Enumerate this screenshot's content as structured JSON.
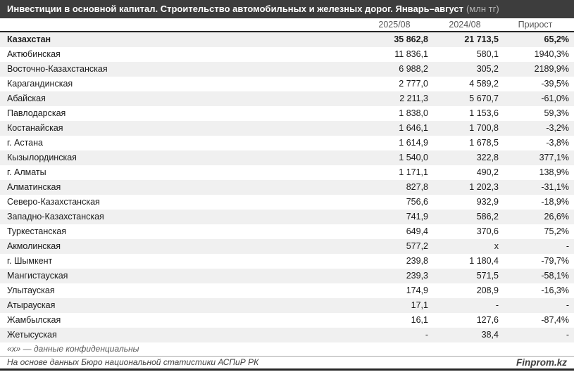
{
  "title": {
    "text": "Инвестиции в основной капитал. Строительство автомобильных и железных дорог. Январь–август",
    "unit": "(млн тг)"
  },
  "table": {
    "columns": [
      "2025/08",
      "2024/08",
      "Прирост"
    ],
    "rows": [
      {
        "region": "Казахстан",
        "v2025": "35 862,8",
        "v2024": "21 713,5",
        "growth": "65,2%",
        "bold": true
      },
      {
        "region": "Актюбинская",
        "v2025": "11 836,1",
        "v2024": "580,1",
        "growth": "1940,3%",
        "bold": false
      },
      {
        "region": "Восточно-Казахстанская",
        "v2025": "6 988,2",
        "v2024": "305,2",
        "growth": "2189,9%",
        "bold": false
      },
      {
        "region": "Карагандинская",
        "v2025": "2 777,0",
        "v2024": "4 589,2",
        "growth": "-39,5%",
        "bold": false
      },
      {
        "region": "Абайская",
        "v2025": "2 211,3",
        "v2024": "5 670,7",
        "growth": "-61,0%",
        "bold": false
      },
      {
        "region": "Павлодарская",
        "v2025": "1 838,0",
        "v2024": "1 153,6",
        "growth": "59,3%",
        "bold": false
      },
      {
        "region": "Костанайская",
        "v2025": "1 646,1",
        "v2024": "1 700,8",
        "growth": "-3,2%",
        "bold": false
      },
      {
        "region": "г. Астана",
        "v2025": "1 614,9",
        "v2024": "1 678,5",
        "growth": "-3,8%",
        "bold": false
      },
      {
        "region": "Кызылординская",
        "v2025": "1 540,0",
        "v2024": "322,8",
        "growth": "377,1%",
        "bold": false
      },
      {
        "region": "г. Алматы",
        "v2025": "1 171,1",
        "v2024": "490,2",
        "growth": "138,9%",
        "bold": false
      },
      {
        "region": "Алматинская",
        "v2025": "827,8",
        "v2024": "1 202,3",
        "growth": "-31,1%",
        "bold": false
      },
      {
        "region": "Северо-Казахстанская",
        "v2025": "756,6",
        "v2024": "932,9",
        "growth": "-18,9%",
        "bold": false
      },
      {
        "region": "Западно-Казахстанская",
        "v2025": "741,9",
        "v2024": "586,2",
        "growth": "26,6%",
        "bold": false
      },
      {
        "region": "Туркестанская",
        "v2025": "649,4",
        "v2024": "370,6",
        "growth": "75,2%",
        "bold": false
      },
      {
        "region": "Акмолинская",
        "v2025": "577,2",
        "v2024": "х",
        "growth": "-",
        "bold": false
      },
      {
        "region": "г. Шымкент",
        "v2025": "239,8",
        "v2024": "1 180,4",
        "growth": "-79,7%",
        "bold": false
      },
      {
        "region": "Мангистауская",
        "v2025": "239,3",
        "v2024": "571,5",
        "growth": "-58,1%",
        "bold": false
      },
      {
        "region": "Улытауская",
        "v2025": "174,9",
        "v2024": "208,9",
        "growth": "-16,3%",
        "bold": false
      },
      {
        "region": "Атырауская",
        "v2025": "17,1",
        "v2024": "-",
        "growth": "-",
        "bold": false
      },
      {
        "region": "Жамбылская",
        "v2025": "16,1",
        "v2024": "127,6",
        "growth": "-87,4%",
        "bold": false
      },
      {
        "region": "Жетысуская",
        "v2025": "-",
        "v2024": "38,4",
        "growth": "-",
        "bold": false
      }
    ]
  },
  "footnote": "«х» — данные конфиденциальны",
  "source": "На основе данных Бюро национальной статистики АСПиР РК",
  "brand": "Finprom.kz",
  "colors": {
    "titlebar_bg": "#3d3d3d",
    "title_text": "#ffffff",
    "unit_text": "#b5b5b5",
    "stripe": "#f0f0f0",
    "border_dark": "#262626",
    "row_text": "#1a1a1a",
    "header_text": "#595959"
  },
  "chart_data": {
    "type": "table",
    "title": "Инвестиции в основной капитал. Строительство автомобильных и железных дорог. Январь–август (млн тг)",
    "categories": [
      "Казахстан",
      "Актюбинская",
      "Восточно-Казахстанская",
      "Карагандинская",
      "Абайская",
      "Павлодарская",
      "Костанайская",
      "г. Астана",
      "Кызылординская",
      "г. Алматы",
      "Алматинская",
      "Северо-Казахстанская",
      "Западно-Казахстанская",
      "Туркестанская",
      "Акмолинская",
      "г. Шымкент",
      "Мангистауская",
      "Улытауская",
      "Атырауская",
      "Жамбылская",
      "Жетысуская"
    ],
    "series": [
      {
        "name": "2025/08",
        "values": [
          35862.8,
          11836.1,
          6988.2,
          2777.0,
          2211.3,
          1838.0,
          1646.1,
          1614.9,
          1540.0,
          1171.1,
          827.8,
          756.6,
          741.9,
          649.4,
          577.2,
          239.8,
          239.3,
          174.9,
          17.1,
          16.1,
          null
        ]
      },
      {
        "name": "2024/08",
        "values": [
          21713.5,
          580.1,
          305.2,
          4589.2,
          5670.7,
          1153.6,
          1700.8,
          1678.5,
          322.8,
          490.2,
          1202.3,
          932.9,
          586.2,
          370.6,
          null,
          1180.4,
          571.5,
          208.9,
          null,
          127.6,
          38.4
        ]
      },
      {
        "name": "Прирост",
        "values": [
          "65,2%",
          "1940,3%",
          "2189,9%",
          "-39,5%",
          "-61,0%",
          "59,3%",
          "-3,2%",
          "-3,8%",
          "377,1%",
          "138,9%",
          "-31,1%",
          "-18,9%",
          "26,6%",
          "75,2%",
          "-",
          "-79,7%",
          "-58,1%",
          "-16,3%",
          "-",
          "-87,4%",
          "-"
        ]
      }
    ],
    "notes": "х = данные конфиденциальны; единицы: млн тг"
  }
}
